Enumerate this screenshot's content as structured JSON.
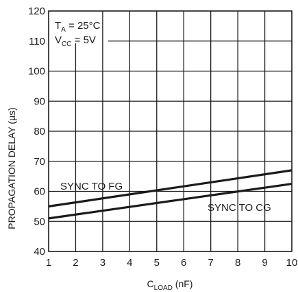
{
  "chart_data": {
    "type": "line",
    "xlabel": {
      "main": "C",
      "sub": "LOAD",
      "unit": " (nF)"
    },
    "ylabel": "PROPAGATION DELAY (µs)",
    "xlim": [
      1,
      10
    ],
    "ylim": [
      40,
      120
    ],
    "xticks": [
      1,
      2,
      3,
      4,
      5,
      6,
      7,
      8,
      9,
      10
    ],
    "yticks": [
      40,
      50,
      60,
      70,
      80,
      90,
      100,
      110,
      120
    ],
    "grid": true,
    "conditions": [
      {
        "main": "T",
        "sub": "A",
        "rest": " = 25°C"
      },
      {
        "main": "V",
        "sub": "CC",
        "rest": " = 5V"
      }
    ],
    "series": [
      {
        "name": "SYNC TO FG",
        "x": [
          1,
          10
        ],
        "y": [
          55,
          67
        ]
      },
      {
        "name": "SYNC TO CG",
        "x": [
          1,
          10
        ],
        "y": [
          51,
          62.5
        ]
      }
    ]
  }
}
